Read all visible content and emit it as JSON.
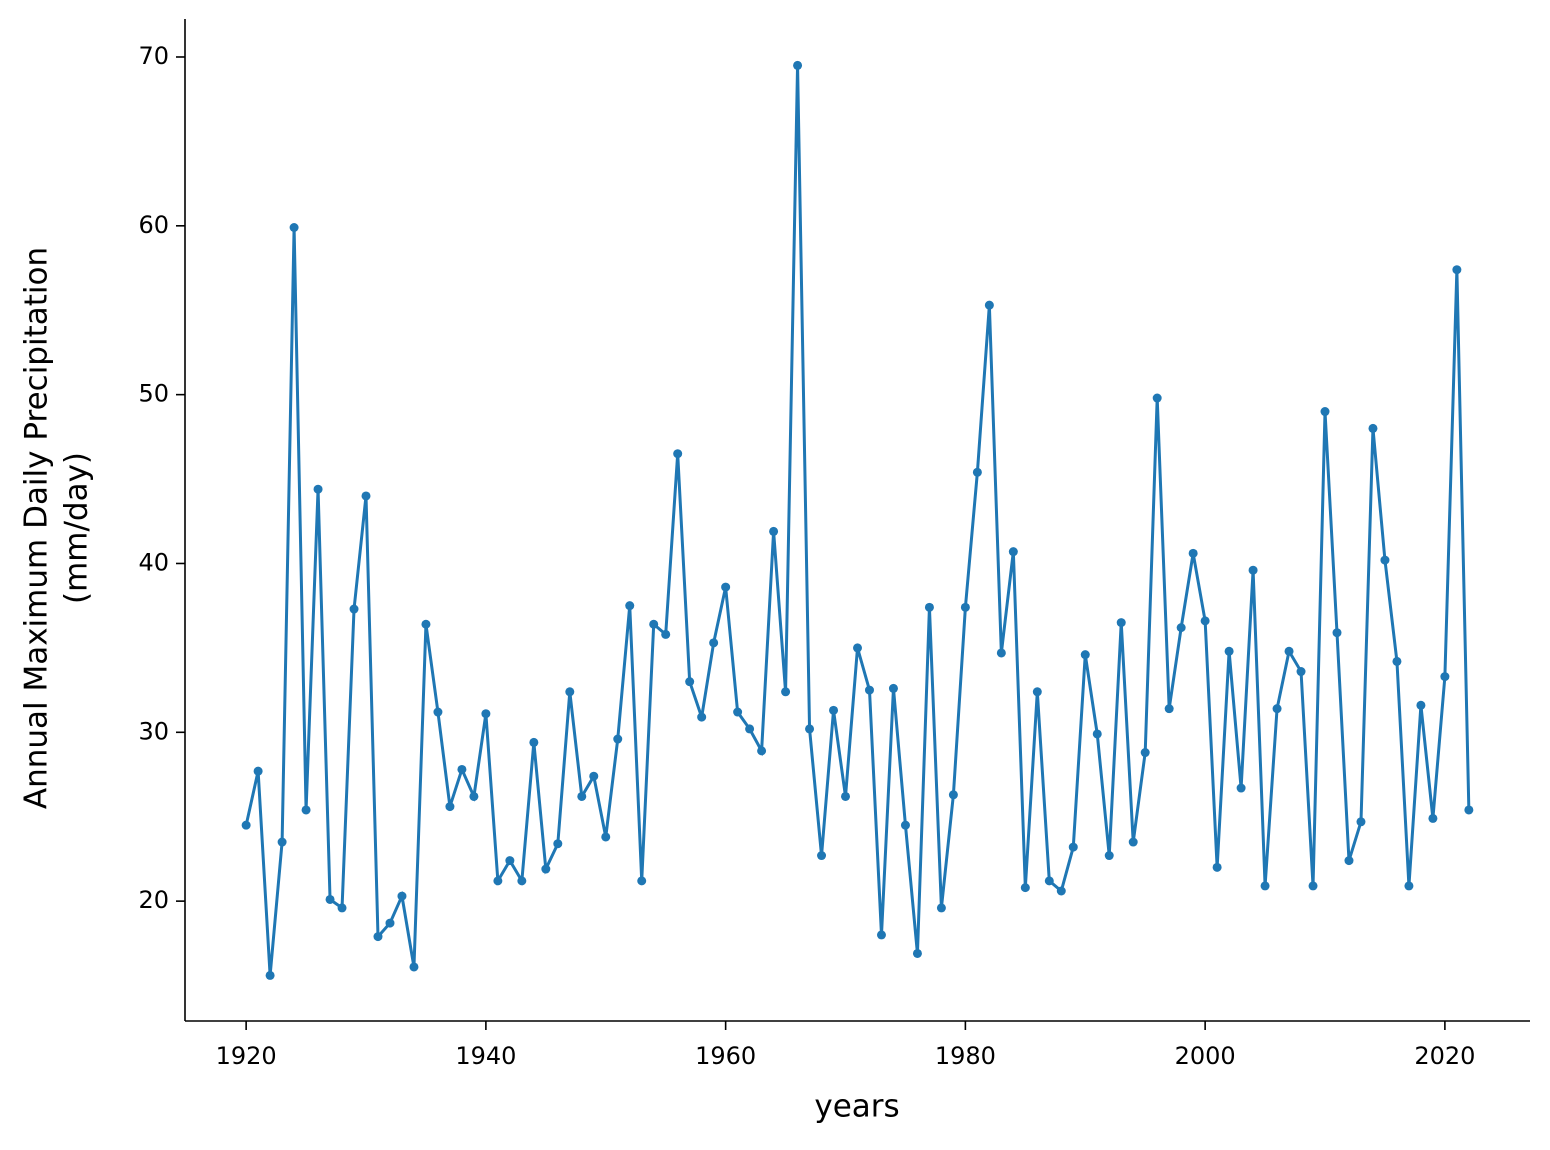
{
  "chart_data": {
    "type": "line",
    "xlabel": "years",
    "ylabel": [
      "Annual Maximum Daily Precipitation",
      "(mm/day)"
    ],
    "x": [
      1920,
      1921,
      1922,
      1923,
      1924,
      1925,
      1926,
      1927,
      1928,
      1929,
      1930,
      1931,
      1932,
      1933,
      1934,
      1935,
      1936,
      1937,
      1938,
      1939,
      1940,
      1941,
      1942,
      1943,
      1944,
      1945,
      1946,
      1947,
      1948,
      1949,
      1950,
      1951,
      1952,
      1953,
      1954,
      1955,
      1956,
      1957,
      1958,
      1959,
      1960,
      1961,
      1962,
      1963,
      1964,
      1965,
      1966,
      1967,
      1968,
      1969,
      1970,
      1971,
      1972,
      1973,
      1974,
      1975,
      1976,
      1977,
      1978,
      1979,
      1980,
      1981,
      1982,
      1983,
      1984,
      1985,
      1986,
      1987,
      1988,
      1989,
      1990,
      1991,
      1992,
      1993,
      1994,
      1995,
      1996,
      1997,
      1998,
      1999,
      2000,
      2001,
      2002,
      2003,
      2004,
      2005,
      2006,
      2007,
      2008,
      2009,
      2010,
      2011,
      2012,
      2013,
      2014,
      2015,
      2016,
      2017,
      2018,
      2019,
      2020,
      2021,
      2022
    ],
    "series": [
      {
        "color": "#1f77b4",
        "values": [
          24.5,
          27.7,
          15.6,
          23.5,
          59.9,
          25.4,
          44.4,
          20.1,
          19.6,
          37.3,
          44.0,
          17.9,
          18.7,
          20.3,
          16.1,
          36.4,
          31.2,
          25.6,
          27.8,
          26.2,
          31.1,
          21.2,
          22.4,
          21.2,
          29.4,
          21.9,
          23.4,
          32.4,
          26.2,
          27.4,
          23.8,
          29.6,
          37.5,
          21.2,
          36.4,
          35.8,
          46.5,
          33.0,
          30.9,
          35.3,
          38.6,
          31.2,
          30.2,
          28.9,
          41.9,
          32.4,
          69.5,
          30.2,
          22.7,
          31.3,
          26.2,
          35.0,
          32.5,
          18.0,
          32.6,
          24.5,
          16.9,
          37.4,
          19.6,
          26.3,
          37.4,
          45.4,
          55.3,
          34.7,
          40.7,
          20.8,
          32.4,
          21.2,
          20.6,
          23.2,
          34.6,
          29.9,
          22.7,
          36.5,
          23.5,
          28.8,
          49.8,
          31.4,
          36.2,
          40.6,
          36.6,
          22.0,
          34.8,
          26.7,
          39.6,
          20.9,
          31.4,
          34.8,
          33.6,
          20.9,
          49.0,
          35.9,
          22.4,
          24.7,
          48.0,
          40.2,
          34.2,
          20.9,
          31.6,
          24.9,
          33.3,
          57.4,
          25.4
        ]
      }
    ],
    "xlim": [
      1914.9,
      2027.1
    ],
    "xticks": [
      1920,
      1940,
      1960,
      1980,
      2000,
      2020
    ],
    "ylim": [
      12.9,
      72.25
    ],
    "yticks": [
      20,
      30,
      40,
      50,
      60,
      70
    ],
    "grid": false,
    "markers": true
  }
}
